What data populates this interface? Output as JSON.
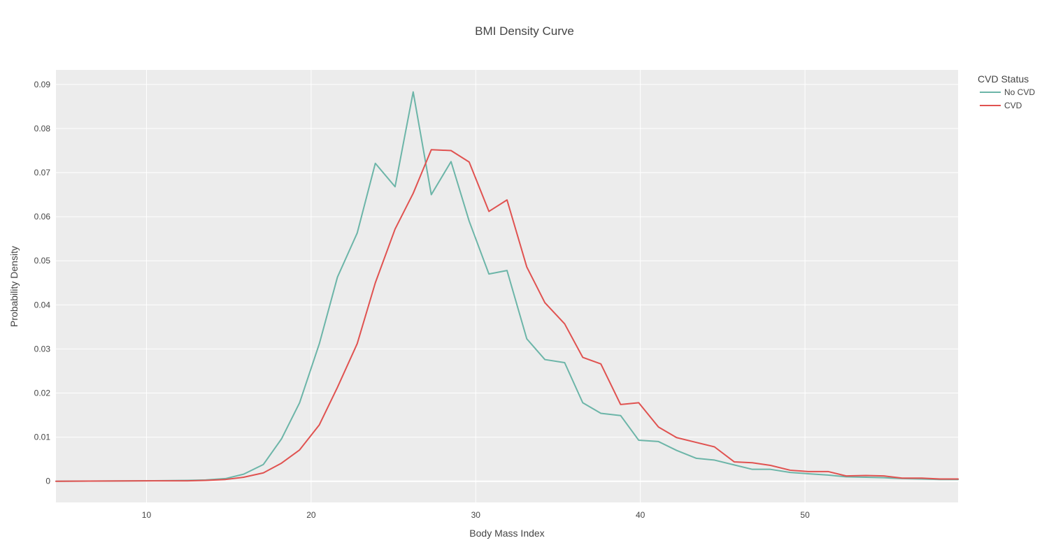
{
  "chart_data": {
    "type": "line",
    "title": "BMI Density Curve",
    "xlabel": "Body Mass Index",
    "ylabel": "Probability Density",
    "xlim": [
      4.5,
      59.3
    ],
    "ylim": [
      -0.0048,
      0.0933
    ],
    "x_ticks": [
      10,
      20,
      30,
      40,
      50
    ],
    "x_tick_labels": [
      "10",
      "20",
      "30",
      "40",
      "50"
    ],
    "y_ticks": [
      0,
      0.01,
      0.02,
      0.03,
      0.04,
      0.05,
      0.06,
      0.07,
      0.08,
      0.09
    ],
    "y_tick_labels": [
      "0",
      "0.01",
      "0.02",
      "0.03",
      "0.04",
      "0.05",
      "0.06",
      "0.07",
      "0.08",
      "0.09"
    ],
    "grid": true,
    "legend": {
      "title": "CVD Status",
      "placement": "top-right-outside"
    },
    "series": [
      {
        "name": "No CVD",
        "color": "#6cb5a8",
        "x": [
          4.5,
          10.0,
          12.5,
          13.6,
          14.8,
          15.9,
          17.1,
          18.2,
          19.3,
          20.5,
          21.6,
          22.8,
          23.9,
          25.1,
          26.2,
          27.3,
          28.5,
          29.6,
          30.8,
          31.9,
          33.1,
          34.2,
          35.4,
          36.5,
          37.6,
          38.8,
          39.9,
          41.1,
          42.2,
          43.4,
          44.5,
          45.7,
          46.8,
          47.9,
          49.1,
          50.2,
          51.4,
          52.5,
          53.7,
          54.8,
          55.9,
          57.1,
          58.2,
          59.3
        ],
        "values": [
          0,
          0.0001,
          0.0002,
          0.0003,
          0.0006,
          0.0016,
          0.0038,
          0.0096,
          0.0178,
          0.0312,
          0.0463,
          0.0563,
          0.0721,
          0.0668,
          0.0883,
          0.065,
          0.0725,
          0.059,
          0.047,
          0.0478,
          0.0323,
          0.0276,
          0.0269,
          0.0178,
          0.0154,
          0.0149,
          0.0093,
          0.009,
          0.007,
          0.0052,
          0.0048,
          0.0037,
          0.0027,
          0.0027,
          0.002,
          0.0017,
          0.0014,
          0.001,
          0.0009,
          0.0008,
          0.0006,
          0.0005,
          0.0004,
          0.0004
        ]
      },
      {
        "name": "CVD",
        "color": "#e05250",
        "x": [
          4.5,
          10.0,
          12.5,
          13.6,
          14.8,
          15.9,
          17.1,
          18.2,
          19.3,
          20.5,
          21.6,
          22.8,
          23.9,
          25.1,
          26.2,
          27.3,
          28.5,
          29.6,
          30.8,
          31.9,
          33.1,
          34.2,
          35.4,
          36.5,
          37.6,
          38.8,
          39.9,
          41.1,
          42.2,
          43.4,
          44.5,
          45.7,
          46.8,
          47.9,
          49.1,
          50.2,
          51.4,
          52.5,
          53.7,
          54.8,
          55.9,
          57.1,
          58.2,
          59.3
        ],
        "values": [
          0,
          0.0001,
          0.0001,
          0.0002,
          0.0004,
          0.0009,
          0.0019,
          0.0041,
          0.0071,
          0.0128,
          0.0213,
          0.0312,
          0.045,
          0.0572,
          0.0653,
          0.0752,
          0.075,
          0.0724,
          0.0612,
          0.0638,
          0.0486,
          0.0405,
          0.0357,
          0.0281,
          0.0266,
          0.0174,
          0.0178,
          0.0123,
          0.0099,
          0.0088,
          0.0078,
          0.0044,
          0.0042,
          0.0036,
          0.0025,
          0.0022,
          0.0022,
          0.0012,
          0.0013,
          0.0012,
          0.0007,
          0.0007,
          0.0005,
          0.0005
        ]
      }
    ]
  }
}
